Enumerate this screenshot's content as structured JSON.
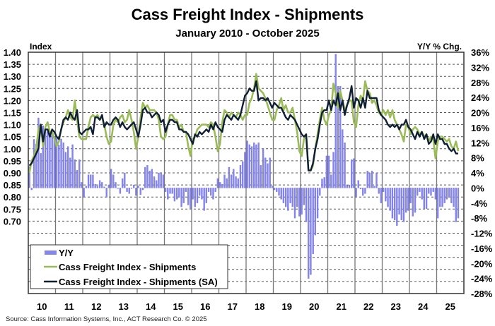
{
  "chart_data": {
    "type": "line+bar",
    "title": "Cass Freight Index - Shipments",
    "subtitle": "January 2010 - October 2025",
    "frequency": "monthly",
    "x_range": [
      "2010-01",
      "2025-10"
    ],
    "x_tick_labels": [
      "10",
      "11",
      "12",
      "13",
      "14",
      "15",
      "16",
      "17",
      "18",
      "19",
      "20",
      "21",
      "22",
      "23",
      "24",
      "25"
    ],
    "y_left": {
      "label": "Index",
      "range": [
        0.4,
        1.4
      ],
      "tick_labels": [
        "1.40",
        "1.35",
        "1.30",
        "1.25",
        "1.20",
        "1.15",
        "1.10",
        "1.05",
        "1.00",
        "0.95",
        "0.90",
        "0.85",
        "0.80",
        "0.75",
        "0.70"
      ]
    },
    "y_right": {
      "label": "Y/Y % Chg.",
      "range": [
        -28,
        36
      ],
      "tick_labels": [
        "36%",
        "32%",
        "28%",
        "24%",
        "20%",
        "16%",
        "12%",
        "8%",
        "4%",
        "0%",
        "-4%",
        "-8%",
        "-12%",
        "-16%",
        "-20%",
        "-24%",
        "-28%"
      ]
    },
    "grid": "horizontal dashed, vertical solid at year boundaries",
    "legend_placement": "bottom-left",
    "series": [
      {
        "name": "Y/Y",
        "type": "bar",
        "axis": "right",
        "color": "#8585ee",
        "values": [
          5.7,
          -0.5,
          12.9,
          11.6,
          18.6,
          9.2,
          16.5,
          15.9,
          14.9,
          14.8,
          14.0,
          13.5,
          13.2,
          11.4,
          13.0,
          12.0,
          9.5,
          11.0,
          8.0,
          11.5,
          7.5,
          4.7,
          7.5,
          1.5,
          -2.5,
          0.5,
          3.5,
          3.5,
          3.5,
          1.0,
          0.5,
          2.0,
          1.5,
          0.3,
          -2.5,
          0.8,
          5.0,
          3.5,
          1.5,
          0.0,
          -1.5,
          2.5,
          4.0,
          -1.0,
          -1.5,
          0.0,
          0.8,
          -2.0,
          0.5,
          -1.8,
          -0.5,
          5.5,
          6.0,
          4.5,
          5.0,
          3.0,
          2.0,
          4.0,
          4.0,
          3.5,
          -1.0,
          -3.0,
          -1.5,
          -1.5,
          -3.5,
          -3.0,
          -2.5,
          -5.0,
          -4.0,
          -1.0,
          -4.5,
          -5.5,
          -3.0,
          -5.0,
          -4.0,
          -2.0,
          -3.0,
          -6.0,
          -4.0,
          -1.0,
          -2.0,
          -3.0,
          -1.0,
          2.5,
          1.5,
          1.0,
          3.5,
          2.5,
          5.5,
          3.5,
          5.0,
          3.0,
          2.5,
          6.0,
          7.0,
          9.5,
          12.5,
          11.5,
          11.0,
          12.0,
          11.5,
          12.0,
          6.0,
          10.5,
          8.0,
          6.5,
          8.0,
          0.5,
          -0.5,
          -1.0,
          -2.0,
          -3.0,
          -4.0,
          -5.0,
          -6.0,
          -4.0,
          -5.0,
          -8.0,
          -5.0,
          -7.5,
          -7.0,
          -4.5,
          -9.0,
          -24.0,
          -23.0,
          -17.5,
          -12.5,
          -8.0,
          -2.0,
          2.4,
          2.8,
          8.5,
          8.5,
          3.5,
          9.5,
          35.5,
          27.0,
          27.0,
          15.5,
          12.0,
          0.7,
          0.8,
          7.5,
          7.8,
          -2.5,
          2.0,
          -0.3,
          -2.0,
          -1.5,
          4.5,
          4.0,
          4.5,
          0.5,
          4.0,
          -1.5,
          -4.0,
          -1.0,
          -3.5,
          -5.0,
          -6.0,
          -8.0,
          -8.5,
          -10.0,
          -7.0,
          -8.5,
          -9.0,
          -6.5,
          -6.0,
          -4.0,
          -7.5,
          -6.5,
          -2.0,
          -1.0,
          -3.0,
          -5.5,
          -5.5,
          -1.5,
          -2.0,
          -1.0,
          -3.0,
          -8.0,
          -5.0,
          -5.0,
          -4.0,
          -3.0,
          -2.5,
          -4.0,
          -5.0,
          -9.0,
          -8.0
        ]
      },
      {
        "name": "Cass Freight Index - Shipments",
        "type": "line",
        "axis": "left",
        "color": "#9bbb59",
        "values": [
          0.9,
          0.95,
          0.97,
          1.0,
          1.08,
          1.1,
          1.01,
          1.09,
          1.11,
          1.07,
          1.07,
          1.04,
          1.01,
          1.03,
          1.08,
          1.11,
          1.13,
          1.16,
          1.13,
          1.12,
          1.2,
          1.12,
          1.05,
          1.04,
          1.04,
          1.04,
          1.09,
          1.13,
          1.14,
          1.13,
          1.14,
          1.12,
          1.13,
          1.1,
          1.05,
          1.02,
          1.03,
          1.1,
          1.12,
          1.11,
          1.13,
          1.14,
          1.11,
          1.12,
          1.16,
          1.12,
          1.07,
          1.0,
          1.05,
          1.13,
          1.19,
          1.17,
          1.18,
          1.16,
          1.16,
          1.16,
          1.15,
          1.12,
          1.05,
          1.04,
          1.05,
          1.1,
          1.14,
          1.14,
          1.12,
          1.12,
          1.09,
          1.1,
          1.07,
          1.07,
          1.01,
          0.97,
          1.04,
          1.05,
          1.08,
          1.09,
          1.1,
          1.1,
          1.1,
          1.09,
          1.11,
          1.1,
          1.05,
          0.99,
          1.02,
          1.11,
          1.16,
          1.15,
          1.13,
          1.15,
          1.14,
          1.13,
          1.15,
          1.14,
          1.12,
          1.14,
          1.14,
          1.19,
          1.21,
          1.25,
          1.31,
          1.25,
          1.24,
          1.23,
          1.21,
          1.18,
          1.15,
          1.12,
          1.12,
          1.16,
          1.18,
          1.21,
          1.16,
          1.18,
          1.15,
          1.15,
          1.17,
          1.12,
          1.07,
          0.99,
          0.97,
          1.04,
          1.05,
          0.91,
          0.91,
          0.93,
          1.0,
          1.06,
          1.12,
          1.17,
          1.12,
          1.1,
          1.14,
          1.16,
          1.27,
          1.23,
          1.17,
          1.24,
          1.2,
          1.16,
          1.18,
          1.2,
          1.2,
          1.11,
          1.09,
          1.18,
          1.22,
          1.2,
          1.28,
          1.24,
          1.23,
          1.19,
          1.2,
          1.18,
          1.15,
          1.14,
          1.16,
          1.14,
          1.16,
          1.13,
          1.16,
          1.12,
          1.1,
          1.08,
          1.06,
          1.03,
          1.1,
          1.09,
          1.06,
          1.08,
          1.09,
          1.08,
          1.06,
          1.07,
          1.05,
          1.06,
          1.03,
          1.05,
          1.04,
          0.96,
          1.03,
          1.05,
          1.05,
          1.04,
          1.03,
          1.04,
          1.01,
          1.0,
          1.03,
          0.99
        ]
      },
      {
        "name": "Cass Freight Index - Shipments (SA)",
        "type": "line",
        "axis": "left",
        "color": "#0f1f33",
        "values": [
          0.93,
          0.94,
          0.96,
          0.98,
          1.0,
          1.1,
          1.03,
          1.08,
          1.08,
          1.05,
          1.08,
          1.07,
          1.05,
          1.04,
          1.08,
          1.12,
          1.13,
          1.12,
          1.15,
          1.13,
          1.12,
          1.16,
          1.07,
          1.06,
          1.07,
          1.08,
          1.08,
          1.09,
          1.06,
          1.13,
          1.13,
          1.12,
          1.14,
          1.09,
          1.11,
          1.1,
          1.1,
          1.12,
          1.13,
          1.12,
          1.09,
          1.11,
          1.09,
          1.08,
          1.09,
          1.1,
          1.11,
          1.08,
          1.05,
          1.1,
          1.16,
          1.17,
          1.15,
          1.15,
          1.13,
          1.14,
          1.15,
          1.14,
          1.11,
          1.12,
          1.07,
          1.1,
          1.12,
          1.12,
          1.11,
          1.11,
          1.08,
          1.08,
          1.07,
          1.07,
          1.06,
          1.04,
          1.02,
          1.06,
          1.05,
          1.07,
          1.06,
          1.07,
          1.08,
          1.07,
          1.1,
          1.08,
          1.11,
          1.09,
          1.08,
          1.07,
          1.12,
          1.14,
          1.13,
          1.12,
          1.14,
          1.13,
          1.12,
          1.14,
          1.18,
          1.22,
          1.23,
          1.25,
          1.24,
          1.24,
          1.28,
          1.2,
          1.21,
          1.21,
          1.2,
          1.21,
          1.19,
          1.17,
          1.19,
          1.18,
          1.17,
          1.17,
          1.15,
          1.13,
          1.12,
          1.14,
          1.13,
          1.12,
          1.1,
          1.08,
          1.06,
          1.05,
          1.06,
          0.91,
          0.91,
          0.94,
          1.0,
          1.04,
          1.1,
          1.15,
          1.16,
          1.16,
          1.2,
          1.16,
          1.2,
          1.18,
          1.23,
          1.16,
          1.2,
          1.14,
          1.18,
          1.21,
          1.26,
          1.17,
          1.21,
          1.2,
          1.17,
          1.21,
          1.17,
          1.24,
          1.21,
          1.21,
          1.21,
          1.21,
          1.16,
          1.14,
          1.13,
          1.12,
          1.1,
          1.09,
          1.1,
          1.09,
          1.1,
          1.08,
          1.1,
          1.1,
          1.12,
          1.09,
          1.08,
          1.06,
          1.04,
          1.07,
          1.05,
          1.07,
          1.04,
          1.06,
          1.02,
          1.03,
          1.06,
          1.02,
          1.06,
          1.04,
          1.04,
          1.02,
          1.02,
          1.0,
          0.99,
          1.0,
          0.98,
          0.98
        ]
      }
    ]
  },
  "source": "Source: Cass Information Systems, Inc., ACT Research Co. © 2025"
}
